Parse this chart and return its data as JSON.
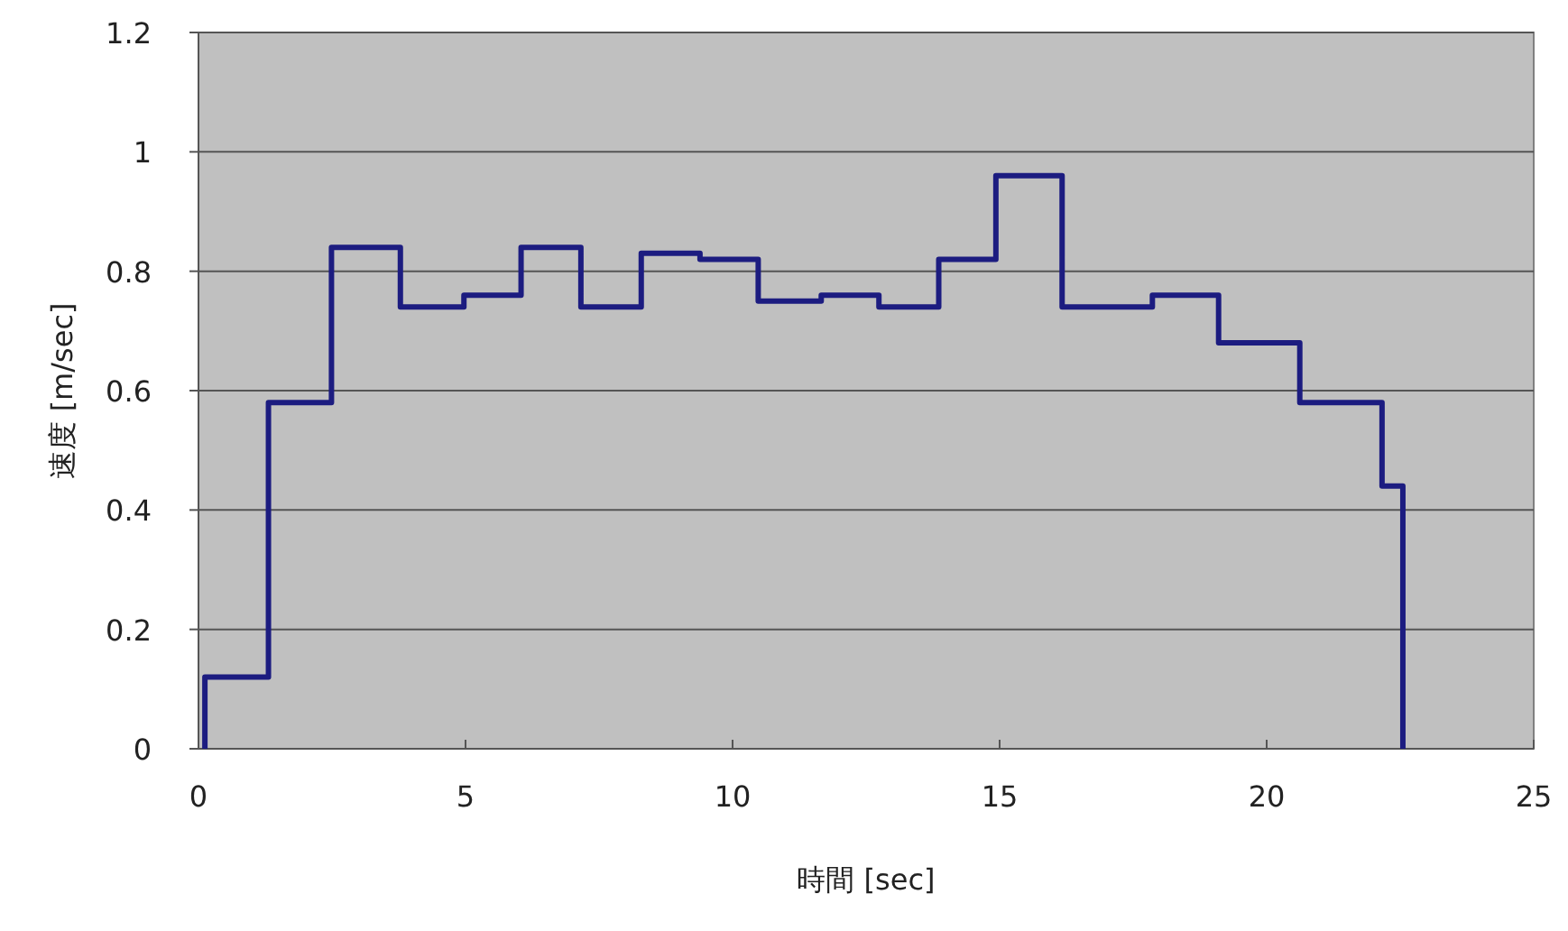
{
  "chart_data": {
    "type": "step",
    "xlabel": "時間 [sec]",
    "ylabel": "速度 [m/sec]",
    "x": [
      0.12,
      0.12,
      1.31,
      2.49,
      3.78,
      4.97,
      6.04,
      7.16,
      8.29,
      9.39,
      10.48,
      11.66,
      12.74,
      13.86,
      14.93,
      16.17,
      17.86,
      19.1,
      20.62,
      22.16,
      22.55
    ],
    "series": [
      {
        "color": "#1c1c80",
        "values": [
          0,
          0.12,
          0.58,
          0.84,
          0.74,
          0.76,
          0.84,
          0.74,
          0.83,
          0.82,
          0.75,
          0.76,
          0.74,
          0.82,
          0.96,
          0.74,
          0.76,
          0.68,
          0.58,
          0.44,
          0
        ]
      }
    ],
    "xlim": [
      0,
      25
    ],
    "xticks": [
      0,
      5,
      10,
      15,
      20,
      25
    ],
    "ylim": [
      0,
      1.2
    ],
    "yticks": [
      0,
      0.2,
      0.4,
      0.6,
      0.8,
      1,
      1.2
    ],
    "grid": "y"
  }
}
